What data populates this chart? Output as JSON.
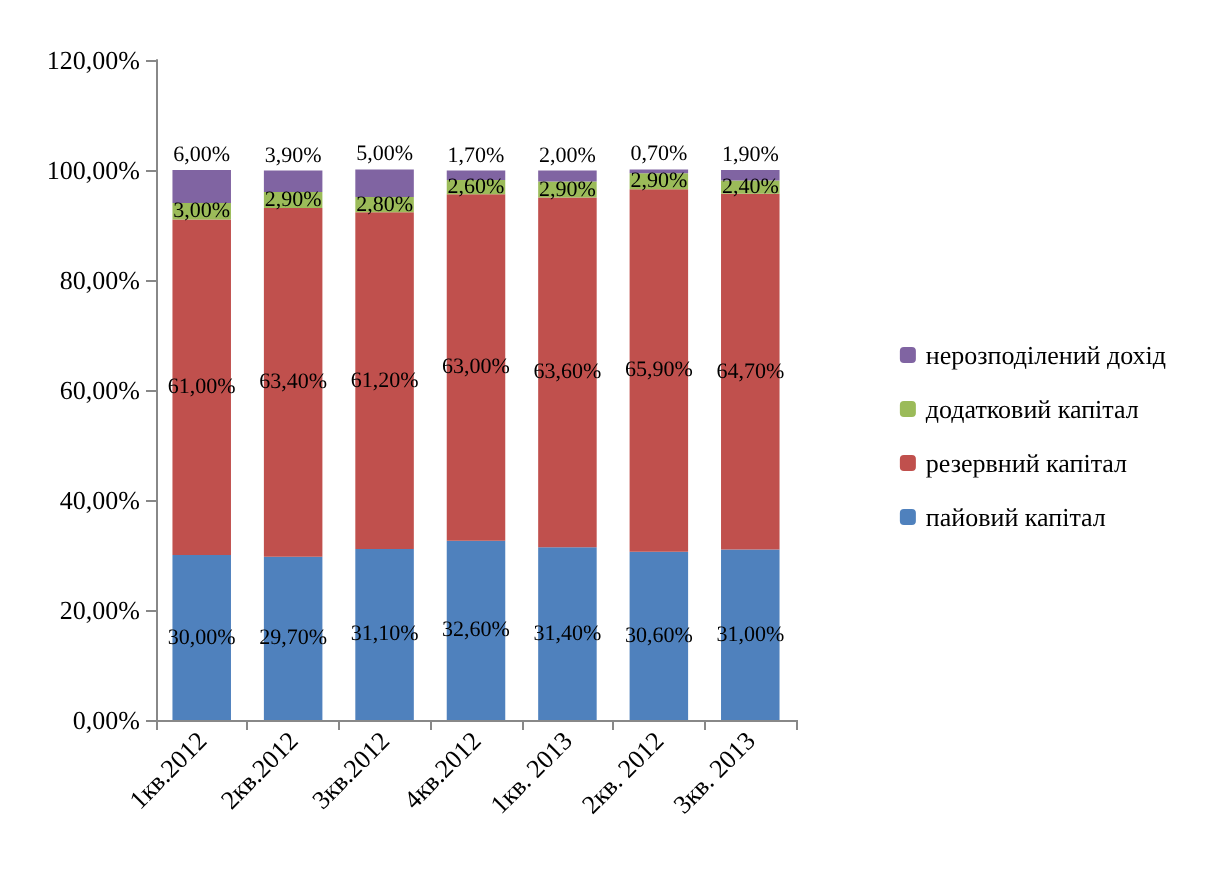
{
  "chart_data": {
    "type": "bar",
    "stacked": true,
    "categories": [
      "1кв.2012",
      "2кв.2012",
      "3кв.2012",
      "4кв.2012",
      "1кв. 2013",
      "2кв. 2012",
      "3кв. 2013"
    ],
    "series": [
      {
        "name": "пайовий капітал",
        "color": "#4f81bd",
        "values": [
          30,
          29.7,
          31.1,
          32.6,
          31.4,
          30.6,
          31
        ],
        "value_labels": [
          "30,00%",
          "29,70%",
          "31,10%",
          "32,60%",
          "31,40%",
          "30,60%",
          "31,00%"
        ]
      },
      {
        "name": "резервний капітал",
        "color": "#c0504d",
        "values": [
          61,
          63.4,
          61.2,
          63,
          63.6,
          65.9,
          64.7
        ],
        "value_labels": [
          "61,00%",
          "63,40%",
          "61,20%",
          "63,00%",
          "63,60%",
          "65,90%",
          "64,70%"
        ]
      },
      {
        "name": "додатковий капітал",
        "color": "#9bbb59",
        "values": [
          3,
          2.9,
          2.8,
          2.6,
          2.9,
          2.9,
          2.4
        ],
        "value_labels": [
          "3,00%",
          "2,90%",
          "2,80%",
          "2,60%",
          "2,90%",
          "2,90%",
          "2,40%"
        ]
      },
      {
        "name": "нерозподілений дохід",
        "color": "#8064a2",
        "values": [
          6,
          3.9,
          5,
          1.7,
          2,
          0.7,
          1.9
        ],
        "value_labels": [
          "6,00%",
          "3,90%",
          "5,00%",
          "1,70%",
          "2,00%",
          "0,70%",
          "1,90%"
        ]
      }
    ],
    "ylim": [
      0,
      120
    ],
    "yticks": [
      {
        "value": 0,
        "label": "0,00%"
      },
      {
        "value": 20,
        "label": "20,00%"
      },
      {
        "value": 40,
        "label": "40,00%"
      },
      {
        "value": 60,
        "label": "60,00%"
      },
      {
        "value": 80,
        "label": "80,00%"
      },
      {
        "value": 100,
        "label": "100,00%"
      },
      {
        "value": 120,
        "label": "120,00%"
      }
    ],
    "grid": false,
    "legend": "right"
  }
}
